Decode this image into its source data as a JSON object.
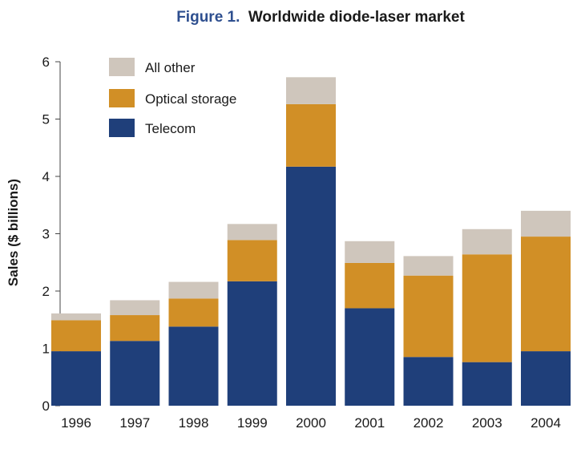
{
  "chart_data": {
    "type": "bar",
    "stacked": true,
    "title_prefix": "Figure 1.",
    "title": "Worldwide diode-laser market",
    "xlabel": "",
    "ylabel": "Sales ($ billions)",
    "ylim": [
      0,
      6
    ],
    "yticks": [
      "0",
      "1",
      "2",
      "3",
      "4",
      "5",
      "6"
    ],
    "categories": [
      "1996",
      "1997",
      "1998",
      "1999",
      "2000",
      "2001",
      "2002",
      "2003",
      "2004"
    ],
    "series": [
      {
        "name": "Telecom",
        "color": "#1f3f7a",
        "values": [
          0.95,
          1.13,
          1.38,
          2.17,
          4.17,
          1.7,
          0.85,
          0.76,
          0.95
        ]
      },
      {
        "name": "Optical storage",
        "color": "#d18f26",
        "values": [
          0.54,
          0.45,
          0.49,
          0.72,
          1.09,
          0.79,
          1.42,
          1.88,
          2.0
        ]
      },
      {
        "name": "All other",
        "color": "#cfc6bc",
        "values": [
          0.12,
          0.26,
          0.29,
          0.28,
          0.47,
          0.38,
          0.34,
          0.44,
          0.45
        ]
      }
    ],
    "legend_order": [
      "All other",
      "Optical storage",
      "Telecom"
    ],
    "legend_position": "top-left",
    "grid": false
  },
  "colors": {
    "title_prefix": "#2e4f8f",
    "title_main": "#1a1a1a",
    "axis": "#444444"
  }
}
